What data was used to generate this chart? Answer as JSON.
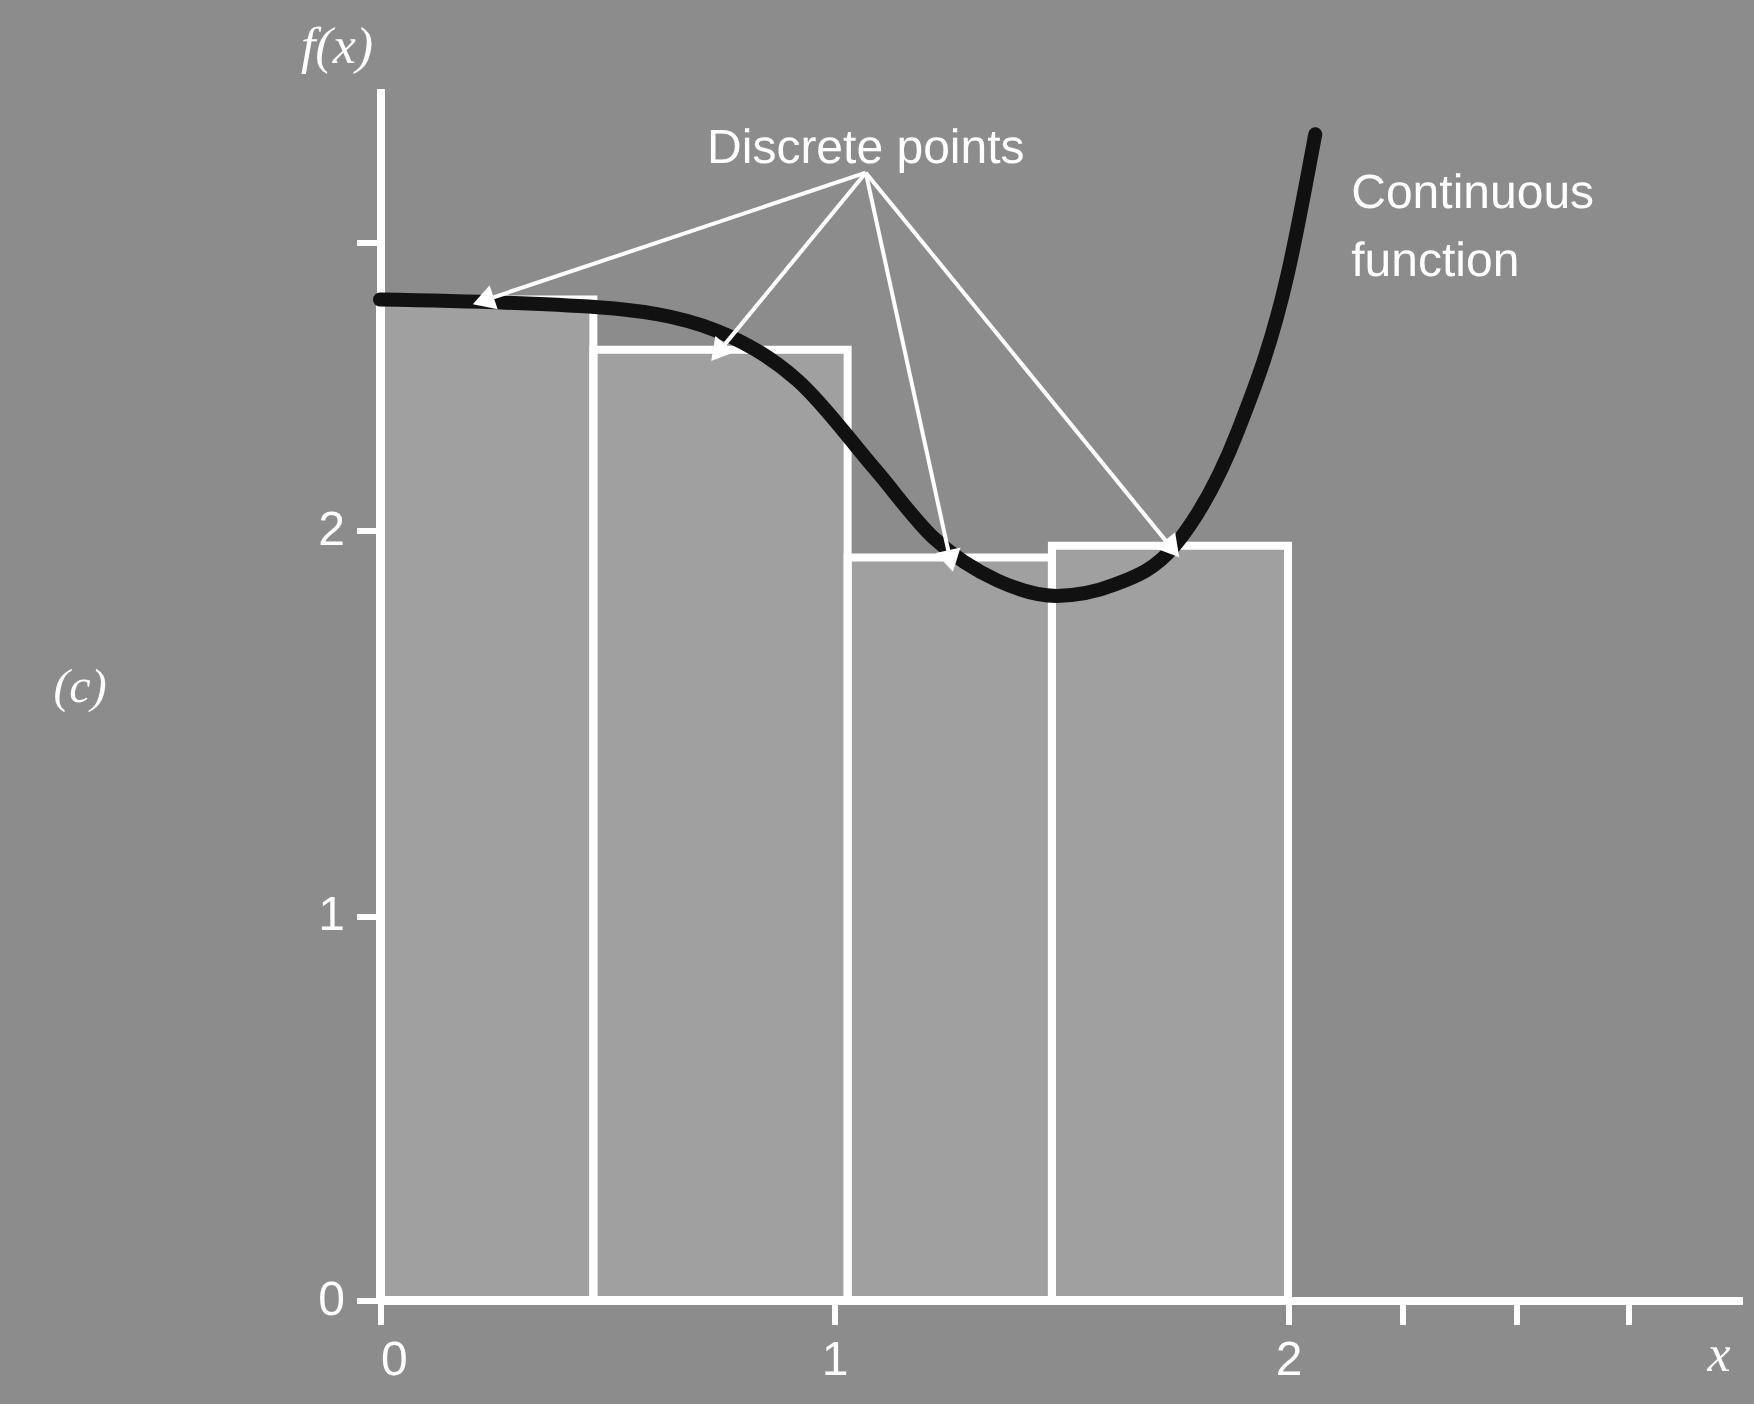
{
  "chart_data": {
    "type": "histogram",
    "xlabel": "x",
    "ylabel": "f(x)",
    "xlim": [
      0,
      3
    ],
    "ylim": [
      0,
      3.15
    ],
    "xticks": [
      0,
      1,
      2,
      {
        "value": 2.25,
        "label": null
      },
      {
        "value": 2.5,
        "label": null
      },
      {
        "value": 2.75,
        "label": null
      }
    ],
    "yticks": [
      0,
      1,
      2,
      {
        "value": 2.75,
        "label": null
      }
    ],
    "grid": false,
    "annotations": [
      {
        "text": "Discrete points",
        "x": 0.235,
        "y": 2.6
      },
      "(c)"
    ],
    "series": [
      {
        "color": "#ffffff",
        "bins": [
          0,
          0.47,
          1.03,
          1.48,
          2
        ],
        "values": [
          2.6,
          2.47,
          1.93,
          1.96
        ]
      },
      {
        "type": "line",
        "name": "Continuous function",
        "color": "#111111",
        "x": [
          0,
          0.48,
          0.74,
          0.92,
          1.09,
          1.22,
          1.36,
          1.49,
          1.62,
          1.75,
          1.89,
          2.0,
          2.06
        ],
        "values": [
          2.6,
          2.58,
          2.52,
          2.39,
          2.16,
          1.98,
          1.87,
          1.83,
          1.86,
          1.96,
          2.26,
          2.67,
          3.03
        ]
      }
    ]
  }
}
